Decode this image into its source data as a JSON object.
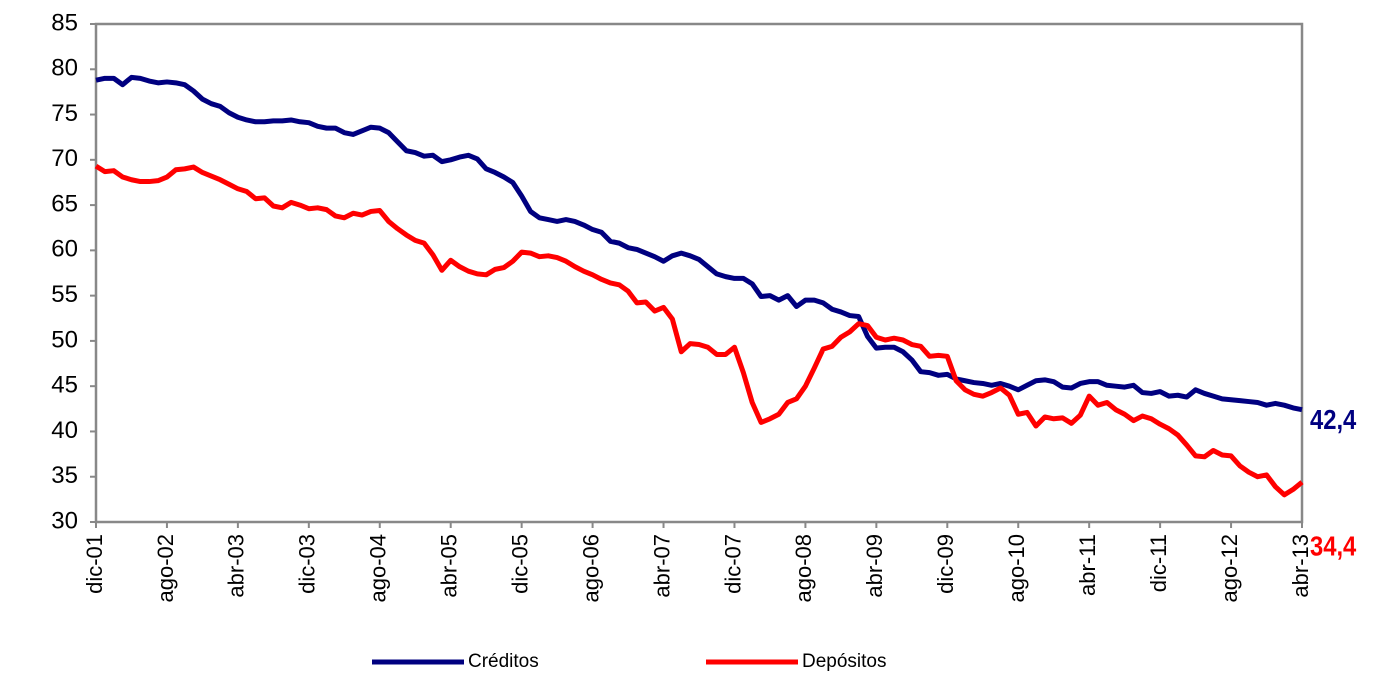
{
  "chart_data": {
    "type": "line",
    "categories": [
      "dic-01",
      null,
      null,
      null,
      null,
      null,
      null,
      null,
      "ago-02",
      null,
      null,
      null,
      null,
      null,
      null,
      null,
      "abr-03",
      null,
      null,
      null,
      null,
      null,
      null,
      null,
      "dic-03",
      null,
      null,
      null,
      null,
      null,
      null,
      null,
      "ago-04",
      null,
      null,
      null,
      null,
      null,
      null,
      null,
      "abr-05",
      null,
      null,
      null,
      null,
      null,
      null,
      null,
      "dic-05",
      null,
      null,
      null,
      null,
      null,
      null,
      null,
      "ago-06",
      null,
      null,
      null,
      null,
      null,
      null,
      null,
      "abr-07",
      null,
      null,
      null,
      null,
      null,
      null,
      null,
      "dic-07",
      null,
      null,
      null,
      null,
      null,
      null,
      null,
      "ago-08",
      null,
      null,
      null,
      null,
      null,
      null,
      null,
      "abr-09",
      null,
      null,
      null,
      null,
      null,
      null,
      null,
      "dic-09",
      null,
      null,
      null,
      null,
      null,
      null,
      null,
      "ago-10",
      null,
      null,
      null,
      null,
      null,
      null,
      null,
      "abr-11",
      null,
      null,
      null,
      null,
      null,
      null,
      null,
      "dic-11",
      null,
      null,
      null,
      null,
      null,
      null,
      null,
      "ago-12",
      null,
      null,
      null,
      null,
      null,
      null,
      null,
      "abr-13"
    ],
    "series": [
      {
        "name": "Créditos",
        "color": "#000080",
        "values": [
          78.8,
          79.0,
          79.0,
          78.3,
          79.1,
          79.0,
          78.7,
          78.5,
          78.6,
          78.5,
          78.3,
          77.6,
          76.7,
          76.2,
          75.9,
          75.2,
          74.7,
          74.4,
          74.2,
          74.2,
          74.3,
          74.3,
          74.4,
          74.2,
          74.1,
          73.7,
          73.5,
          73.5,
          73.0,
          72.8,
          73.2,
          73.6,
          73.5,
          73.0,
          72.0,
          71.0,
          70.8,
          70.4,
          70.5,
          69.8,
          70.0,
          70.3,
          70.5,
          70.1,
          69.0,
          68.6,
          68.1,
          67.5,
          66.0,
          64.3,
          63.6,
          63.4,
          63.2,
          63.4,
          63.2,
          62.8,
          62.3,
          62.0,
          61.0,
          60.8,
          60.3,
          60.1,
          59.7,
          59.3,
          58.8,
          59.4,
          59.7,
          59.4,
          59.0,
          58.2,
          57.4,
          57.1,
          56.9,
          56.9,
          56.3,
          54.9,
          55.0,
          54.5,
          55.0,
          53.8,
          54.5,
          54.5,
          54.2,
          53.5,
          53.2,
          52.8,
          52.7,
          50.5,
          49.2,
          49.3,
          49.3,
          48.8,
          47.9,
          46.6,
          46.5,
          46.2,
          46.3,
          45.8,
          45.6,
          45.4,
          45.3,
          45.1,
          45.3,
          45.0,
          44.6,
          45.1,
          45.6,
          45.7,
          45.5,
          44.9,
          44.8,
          45.3,
          45.5,
          45.5,
          45.1,
          45.0,
          44.9,
          45.1,
          44.3,
          44.2,
          44.4,
          43.9,
          44.0,
          43.8,
          44.6,
          44.2,
          43.9,
          43.6,
          43.5,
          43.4,
          43.3,
          43.2,
          42.9,
          43.1,
          42.9,
          42.6,
          42.4
        ],
        "value_labels": [
          null,
          null,
          null,
          null,
          null,
          null,
          null,
          null,
          null,
          null,
          null,
          null,
          null,
          null,
          null,
          null,
          null,
          null,
          null,
          null,
          null,
          null,
          null,
          null,
          null,
          null,
          null,
          null,
          null,
          null,
          null,
          null,
          null,
          null,
          null,
          null,
          null,
          null,
          null,
          null,
          null,
          null,
          null,
          null,
          null,
          null,
          null,
          null,
          null,
          null,
          null,
          null,
          null,
          null,
          null,
          null,
          null,
          null,
          null,
          null,
          null,
          null,
          null,
          null,
          null,
          null,
          null,
          null,
          null,
          null,
          null,
          null,
          null,
          null,
          null,
          null,
          null,
          null,
          null,
          null,
          null,
          null,
          null,
          null,
          null,
          null,
          null,
          null,
          null,
          null,
          null,
          null,
          null,
          null,
          null,
          null,
          null,
          null,
          null,
          null,
          null,
          null,
          null,
          null,
          null,
          null,
          null,
          null,
          null,
          null,
          null,
          null,
          null,
          null,
          null,
          null,
          null,
          null,
          null,
          null,
          null,
          null,
          null,
          null,
          null,
          null,
          null,
          null,
          null,
          null,
          null,
          null,
          null,
          null,
          null,
          null,
          "42,4"
        ]
      },
      {
        "name": "Depósitos",
        "color": "#ff0000",
        "values": [
          69.3,
          68.7,
          68.8,
          68.1,
          67.8,
          67.6,
          67.6,
          67.7,
          68.1,
          68.9,
          69.0,
          69.2,
          68.6,
          68.2,
          67.8,
          67.3,
          66.8,
          66.5,
          65.7,
          65.8,
          64.9,
          64.7,
          65.3,
          65.0,
          64.6,
          64.7,
          64.5,
          63.8,
          63.6,
          64.1,
          63.9,
          64.3,
          64.4,
          63.2,
          62.4,
          61.7,
          61.1,
          60.8,
          59.5,
          57.8,
          58.9,
          58.2,
          57.7,
          57.4,
          57.3,
          57.9,
          58.1,
          58.8,
          59.8,
          59.7,
          59.3,
          59.4,
          59.2,
          58.8,
          58.2,
          57.7,
          57.3,
          56.8,
          56.4,
          56.2,
          55.5,
          54.2,
          54.3,
          53.3,
          53.7,
          52.4,
          48.8,
          49.7,
          49.6,
          49.3,
          48.5,
          48.5,
          49.3,
          46.5,
          43.2,
          41.0,
          41.4,
          41.9,
          43.2,
          43.6,
          45.0,
          47.0,
          49.1,
          49.4,
          50.4,
          51.0,
          51.9,
          51.7,
          50.4,
          50.1,
          50.3,
          50.1,
          49.6,
          49.4,
          48.3,
          48.4,
          48.3,
          45.6,
          44.6,
          44.1,
          43.9,
          44.3,
          44.8,
          44.0,
          41.9,
          42.1,
          40.6,
          41.6,
          41.4,
          41.5,
          40.9,
          41.8,
          43.9,
          42.9,
          43.2,
          42.4,
          41.9,
          41.2,
          41.7,
          41.4,
          40.8,
          40.3,
          39.6,
          38.5,
          37.3,
          37.2,
          37.9,
          37.4,
          37.3,
          36.2,
          35.5,
          35.0,
          35.2,
          33.9,
          33.0,
          33.6,
          34.4
        ],
        "value_labels": [
          null,
          null,
          null,
          null,
          null,
          null,
          null,
          null,
          null,
          null,
          null,
          null,
          null,
          null,
          null,
          null,
          null,
          null,
          null,
          null,
          null,
          null,
          null,
          null,
          null,
          null,
          null,
          null,
          null,
          null,
          null,
          null,
          null,
          null,
          null,
          null,
          null,
          null,
          null,
          null,
          null,
          null,
          null,
          null,
          null,
          null,
          null,
          null,
          null,
          null,
          null,
          null,
          null,
          null,
          null,
          null,
          null,
          null,
          null,
          null,
          null,
          null,
          null,
          null,
          null,
          null,
          null,
          null,
          null,
          null,
          null,
          null,
          null,
          null,
          null,
          null,
          null,
          null,
          null,
          null,
          null,
          null,
          null,
          null,
          null,
          null,
          null,
          null,
          null,
          null,
          null,
          null,
          null,
          null,
          null,
          null,
          null,
          null,
          null,
          null,
          null,
          null,
          null,
          null,
          null,
          null,
          null,
          null,
          null,
          null,
          null,
          null,
          null,
          null,
          null,
          null,
          null,
          null,
          null,
          null,
          null,
          null,
          null,
          null,
          null,
          null,
          null,
          null,
          null,
          null,
          null,
          null,
          null,
          null,
          null,
          null,
          "34,4"
        ]
      }
    ],
    "ylim": [
      30,
      85
    ],
    "yticks": [
      30,
      35,
      40,
      45,
      50,
      55,
      60,
      65,
      70,
      75,
      80,
      85
    ],
    "grid": false,
    "legend": "bottom"
  }
}
